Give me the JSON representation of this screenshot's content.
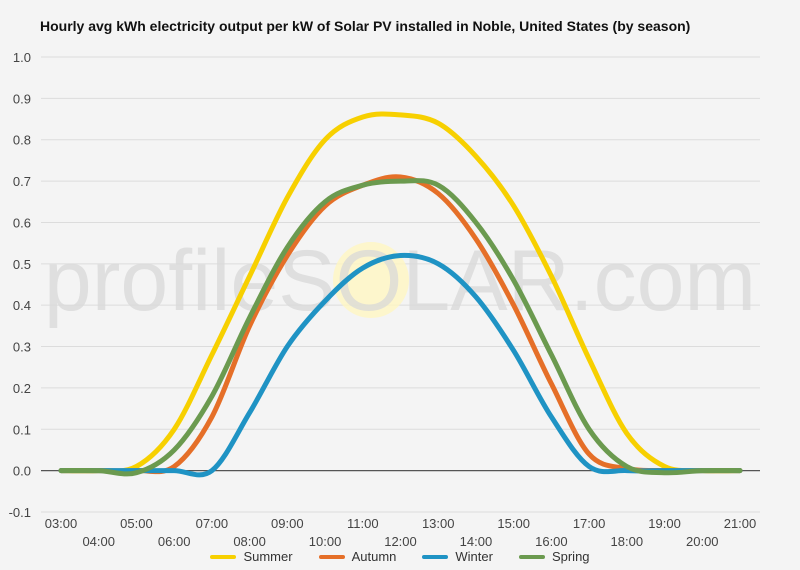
{
  "chart_data": {
    "type": "line",
    "title": "Hourly avg kWh electricity output per kW of Solar PV installed in Noble, United States (by season)",
    "watermark": "profileSOLAR.com",
    "xlabel": "",
    "ylabel": "",
    "ylim": [
      -0.1,
      1.0
    ],
    "yticks": [
      "-0.1",
      "0.0",
      "0.1",
      "0.2",
      "0.3",
      "0.4",
      "0.5",
      "0.6",
      "0.7",
      "0.8",
      "0.9",
      "1.0"
    ],
    "xlim": [
      "03:00",
      "21:00"
    ],
    "xticks": [
      "03:00",
      "04:00",
      "05:00",
      "06:00",
      "07:00",
      "08:00",
      "09:00",
      "10:00",
      "11:00",
      "12:00",
      "13:00",
      "14:00",
      "15:00",
      "16:00",
      "17:00",
      "18:00",
      "19:00",
      "20:00",
      "21:00"
    ],
    "grid": true,
    "legend_position": "bottom",
    "x": [
      "03:00",
      "04:00",
      "05:00",
      "06:00",
      "07:00",
      "08:00",
      "09:00",
      "10:00",
      "11:00",
      "12:00",
      "13:00",
      "14:00",
      "15:00",
      "16:00",
      "17:00",
      "18:00",
      "19:00",
      "20:00",
      "21:00"
    ],
    "series": [
      {
        "name": "Summer",
        "color": "#f7d000",
        "values": [
          0,
          0,
          0.01,
          0.1,
          0.28,
          0.47,
          0.66,
          0.8,
          0.855,
          0.86,
          0.84,
          0.76,
          0.64,
          0.47,
          0.27,
          0.09,
          0.01,
          0,
          0
        ]
      },
      {
        "name": "Autumn",
        "color": "#e56f28",
        "values": [
          0,
          0,
          0,
          0.01,
          0.13,
          0.35,
          0.52,
          0.64,
          0.69,
          0.71,
          0.67,
          0.56,
          0.4,
          0.21,
          0.04,
          0.005,
          0,
          0,
          0
        ]
      },
      {
        "name": "Winter",
        "color": "#1f93c4",
        "values": [
          0,
          0,
          0,
          0,
          0,
          0.14,
          0.3,
          0.41,
          0.49,
          0.52,
          0.5,
          0.42,
          0.29,
          0.13,
          0.01,
          0,
          0,
          0,
          0
        ]
      },
      {
        "name": "Spring",
        "color": "#6b9a4f",
        "values": [
          0,
          0,
          -0.005,
          0.05,
          0.18,
          0.37,
          0.54,
          0.65,
          0.69,
          0.7,
          0.69,
          0.6,
          0.46,
          0.28,
          0.1,
          0.01,
          -0.005,
          0,
          0
        ]
      }
    ]
  }
}
